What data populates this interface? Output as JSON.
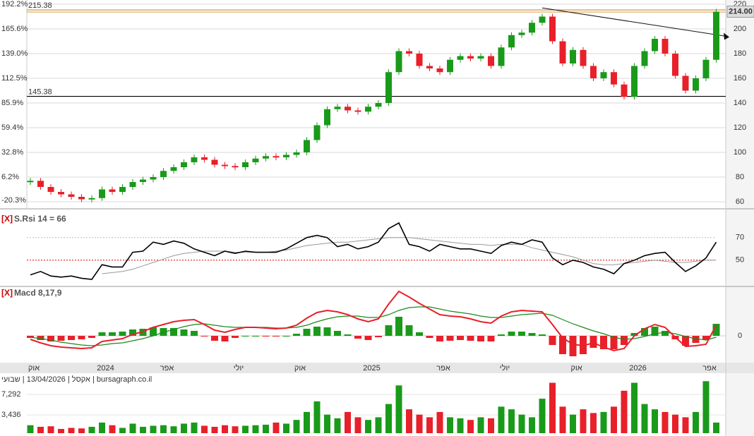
{
  "chart_data": [
    {
      "type": "candlestick",
      "categories": [
        "אוק",
        null,
        null,
        null,
        null,
        null,
        null,
        "2024",
        null,
        null,
        null,
        null,
        null,
        "אפר",
        null,
        null,
        null,
        null,
        null,
        null,
        "יולי",
        null,
        null,
        null,
        null,
        null,
        "אוק",
        null,
        null,
        null,
        null,
        null,
        null,
        "2025",
        null,
        null,
        null,
        null,
        null,
        null,
        "אפר",
        null,
        null,
        null,
        null,
        null,
        "יולי",
        null,
        null,
        null,
        null,
        null,
        null,
        "אוק",
        null,
        null,
        null,
        null,
        null,
        "2026",
        null,
        null,
        null,
        null,
        null,
        null,
        "אפר",
        null
      ],
      "values": [
        77,
        72,
        68,
        66,
        64,
        62,
        63,
        70,
        68,
        72,
        76,
        78,
        80,
        85,
        88,
        92,
        96,
        94,
        90,
        89,
        88,
        92,
        95,
        97,
        96,
        98,
        100,
        110,
        122,
        135,
        137,
        134,
        133,
        137,
        140,
        165,
        182,
        180,
        170,
        168,
        165,
        175,
        178,
        176,
        178,
        170,
        185,
        195,
        197,
        205,
        210,
        190,
        172,
        183,
        170,
        160,
        165,
        155,
        145,
        170,
        182,
        192,
        180,
        162,
        150,
        160,
        175,
        214
      ],
      "up_color": "#1a9a1a",
      "down_color": "#e8202a",
      "ylim": [
        60,
        220
      ],
      "yticks": [
        220,
        200,
        180,
        160,
        140,
        120,
        100,
        80,
        60
      ],
      "y2lim": [
        -20.3,
        192.2
      ],
      "y2ticks": [
        {
          "value": 192.2,
          "label": "192.2%"
        },
        {
          "value": 165.6,
          "label": "165.6%"
        },
        {
          "value": 139.0,
          "label": "139.0%"
        },
        {
          "value": 112.5,
          "label": "112.5%"
        },
        {
          "value": 85.9,
          "label": "85.9%"
        },
        {
          "value": 59.4,
          "label": "59.4%"
        },
        {
          "value": 32.8,
          "label": "32.8%"
        },
        {
          "value": 6.2,
          "label": "6.2%"
        },
        {
          "value": -20.3,
          "label": "-20.3%"
        }
      ],
      "lines": [
        {
          "value": 215.38,
          "label": "215.38",
          "color": "#d08a2a"
        },
        {
          "value": 145.38,
          "label": "145.38",
          "color": "#000"
        }
      ],
      "last_price": {
        "value": 214,
        "label": "214.00"
      },
      "trendline": {
        "from": [
          50,
          217
        ],
        "to": [
          68,
          194
        ]
      },
      "grid": true
    },
    {
      "type": "line",
      "close_button": "[X]",
      "title": "S.Rsi 14 = 66",
      "series": [
        {
          "color": "#000",
          "values": [
            37,
            40,
            36,
            35,
            36,
            34,
            33,
            46,
            44,
            44,
            57,
            58,
            66,
            64,
            67,
            65,
            60,
            57,
            54,
            58,
            56,
            58,
            57,
            57,
            57,
            60,
            65,
            70,
            72,
            70,
            62,
            64,
            60,
            62,
            66,
            78,
            83,
            64,
            62,
            58,
            64,
            62,
            60,
            60,
            58,
            56,
            63,
            66,
            64,
            68,
            66,
            52,
            46,
            50,
            48,
            44,
            42,
            38,
            47,
            50,
            54,
            56,
            57,
            48,
            40,
            45,
            52,
            66
          ]
        },
        {
          "color": "#999",
          "values": [
            null,
            null,
            null,
            null,
            null,
            null,
            null,
            38,
            39,
            40,
            42,
            45,
            48,
            51,
            54,
            56,
            57,
            58,
            58,
            58,
            57,
            57,
            57,
            57,
            58,
            59,
            61,
            63,
            64,
            65,
            66,
            66,
            67,
            68,
            69,
            70,
            70,
            70,
            69,
            68,
            67,
            66,
            65,
            64,
            64,
            63,
            64,
            64,
            64,
            61,
            59,
            57,
            55,
            53,
            50,
            47,
            46,
            46,
            47,
            48,
            49,
            50,
            49,
            48,
            48,
            49,
            50,
            50
          ]
        }
      ],
      "ylim": [
        28,
        93
      ],
      "yticks": [
        70,
        50
      ],
      "level_colors": [
        "#bbb",
        "#d00"
      ]
    },
    {
      "type": "macd",
      "close_button": "[X]",
      "title": "Macd 8,17,9",
      "series": [
        {
          "color": "#e8202a",
          "values": [
            -0.5,
            -1.0,
            -1.4,
            -1.6,
            -1.7,
            -1.8,
            -1.7,
            -0.8,
            -0.6,
            -0.4,
            0.2,
            0.6,
            1.2,
            1.6,
            2.0,
            2.2,
            2.3,
            1.6,
            0.8,
            0.5,
            0.9,
            1.2,
            1.2,
            1.1,
            1.0,
            1.1,
            1.5,
            2.5,
            3.3,
            3.6,
            3.4,
            3.0,
            2.4,
            2.0,
            2.4,
            4.5,
            6.3,
            5.5,
            4.6,
            3.8,
            3.0,
            2.8,
            2.7,
            2.4,
            2.0,
            1.8,
            2.8,
            3.4,
            3.6,
            3.5,
            3.4,
            1.6,
            -0.3,
            -1.2,
            -1.4,
            -1.0,
            -1.6,
            -2.1,
            -1.8,
            0.0,
            1.0,
            1.6,
            1.2,
            -0.2,
            -1.5,
            -1.4,
            -1.2,
            1.5
          ]
        },
        {
          "color": "#1a8a1a",
          "values": [
            -0.2,
            -0.4,
            -0.6,
            -0.9,
            -1.1,
            -1.3,
            -1.4,
            -1.3,
            -1.1,
            -1.0,
            -0.7,
            -0.4,
            0.0,
            0.5,
            0.9,
            1.3,
            1.6,
            1.7,
            1.5,
            1.3,
            1.2,
            1.2,
            1.2,
            1.2,
            1.1,
            1.1,
            1.2,
            1.5,
            2.0,
            2.4,
            2.7,
            2.8,
            2.8,
            2.6,
            2.6,
            3.0,
            3.6,
            4.0,
            4.1,
            4.1,
            3.8,
            3.5,
            3.3,
            3.1,
            2.8,
            2.6,
            2.6,
            2.8,
            3.0,
            3.1,
            3.2,
            2.9,
            2.3,
            1.7,
            1.2,
            0.7,
            0.3,
            -0.2,
            -0.5,
            -0.4,
            -0.1,
            0.3,
            0.5,
            0.3,
            -0.1,
            -0.4,
            -0.6,
            -0.2
          ]
        }
      ],
      "histogram": [
        -0.3,
        -0.6,
        -0.8,
        -0.7,
        -0.6,
        -0.5,
        -0.3,
        0.5,
        0.5,
        0.6,
        0.9,
        1.0,
        1.2,
        1.1,
        1.1,
        0.9,
        0.7,
        -0.1,
        -0.7,
        -0.8,
        -0.3,
        0.0,
        0.0,
        -0.1,
        -0.1,
        0.0,
        0.3,
        1.0,
        1.3,
        1.2,
        0.7,
        0.2,
        -0.4,
        -0.6,
        -0.2,
        1.5,
        2.7,
        1.5,
        0.5,
        -0.3,
        -0.8,
        -0.7,
        -0.6,
        -0.7,
        -0.8,
        -0.8,
        0.2,
        0.6,
        0.6,
        0.4,
        0.2,
        -1.3,
        -2.6,
        -2.9,
        -2.6,
        -1.7,
        -1.9,
        -1.9,
        -1.3,
        0.4,
        1.1,
        1.3,
        0.7,
        -0.5,
        -1.4,
        -1.0,
        -0.6,
        1.7
      ],
      "hist_colors": [
        "#1a9a1a",
        "#e8202a"
      ],
      "ylim": [
        -3.6,
        6.8
      ],
      "yticks": [
        0
      ]
    },
    {
      "type": "volume",
      "title": "אקסל | 13/04/2026 | שבועי | bursagraph.co.il",
      "values": [
        1500,
        1200,
        1300,
        800,
        1000,
        900,
        1200,
        2000,
        1500,
        1000,
        1800,
        1200,
        1400,
        1500,
        1300,
        1800,
        2000,
        1400,
        1200,
        1500,
        1300,
        1400,
        1500,
        1600,
        2000,
        1800,
        2500,
        4000,
        6000,
        3500,
        2800,
        4000,
        3000,
        2500,
        3000,
        5500,
        9000,
        4500,
        3500,
        3000,
        4000,
        3000,
        2800,
        2500,
        3000,
        2800,
        5000,
        4500,
        3500,
        3000,
        6500,
        9500,
        5000,
        3500,
        4500,
        3800,
        4000,
        5000,
        8000,
        9500,
        5500,
        4500,
        4000,
        3500,
        3000,
        4000,
        9800,
        2000
      ],
      "ylim": [
        0,
        11170
      ],
      "yticks": [
        {
          "value": 7292,
          "label": "7,292"
        },
        {
          "value": 3436,
          "label": "3,436"
        }
      ]
    }
  ]
}
